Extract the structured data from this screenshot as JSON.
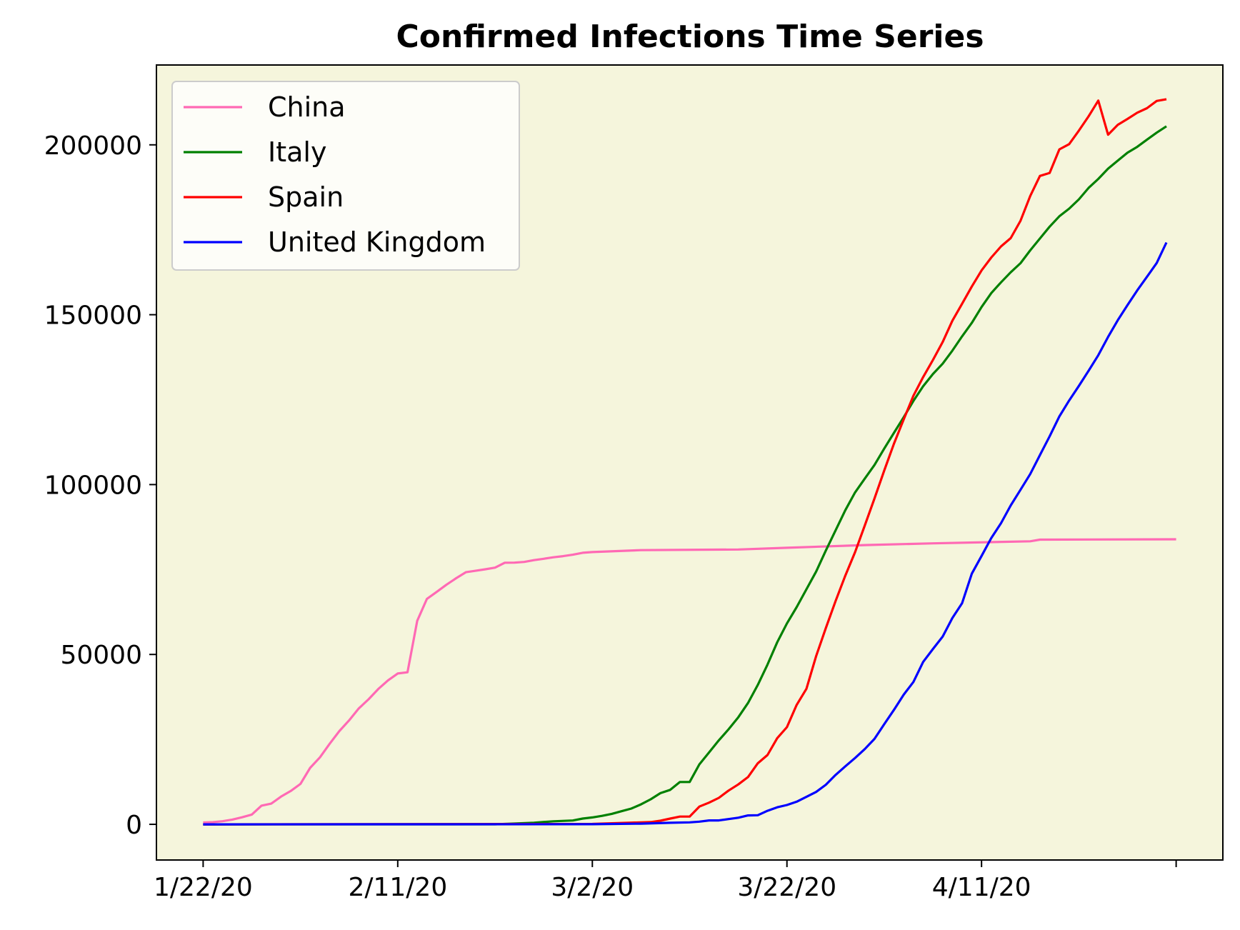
{
  "chart_data": {
    "type": "line",
    "title": "Confirmed Infections Time Series",
    "xlabel": "",
    "ylabel": "",
    "x_axis": {
      "ticks": [
        "1/22/20",
        "2/11/20",
        "3/2/20",
        "3/22/20",
        "4/11/20",
        ""
      ],
      "tick_days": [
        0,
        20,
        40,
        60,
        80,
        100
      ],
      "range_days": [
        -4.8,
        104.8
      ]
    },
    "ylim": [
      -10500,
      223500
    ],
    "y_ticks": [
      0,
      50000,
      100000,
      150000,
      200000
    ],
    "y_tick_labels": [
      "0",
      "50000",
      "100000",
      "150000",
      "200000"
    ],
    "background_color": "#f5f5dc",
    "grid": false,
    "legend": {
      "location": "upper-left"
    },
    "series": [
      {
        "name": "China",
        "color": "#ff69b4",
        "points": [
          [
            0,
            548
          ],
          [
            1,
            643
          ],
          [
            2,
            920
          ],
          [
            3,
            1406
          ],
          [
            4,
            2075
          ],
          [
            5,
            2877
          ],
          [
            6,
            5509
          ],
          [
            7,
            6087
          ],
          [
            8,
            8141
          ],
          [
            9,
            9802
          ],
          [
            10,
            11891
          ],
          [
            11,
            16630
          ],
          [
            12,
            19716
          ],
          [
            13,
            23707
          ],
          [
            14,
            27440
          ],
          [
            15,
            30587
          ],
          [
            16,
            34110
          ],
          [
            17,
            36814
          ],
          [
            18,
            39829
          ],
          [
            19,
            42354
          ],
          [
            20,
            44386
          ],
          [
            21,
            44759
          ],
          [
            22,
            59895
          ],
          [
            23,
            66358
          ],
          [
            24,
            68413
          ],
          [
            25,
            70513
          ],
          [
            26,
            72434
          ],
          [
            27,
            74211
          ],
          [
            28,
            74619
          ],
          [
            29,
            75077
          ],
          [
            30,
            75550
          ],
          [
            31,
            77001
          ],
          [
            32,
            77022
          ],
          [
            33,
            77241
          ],
          [
            34,
            77754
          ],
          [
            35,
            78166
          ],
          [
            36,
            78600
          ],
          [
            37,
            78928
          ],
          [
            38,
            79356
          ],
          [
            39,
            79932
          ],
          [
            40,
            80136
          ],
          [
            45,
            80700
          ],
          [
            55,
            80900
          ],
          [
            60,
            81400
          ],
          [
            68,
            82200
          ],
          [
            75,
            82700
          ],
          [
            85,
            83300
          ],
          [
            86,
            83800
          ],
          [
            100,
            83900
          ]
        ]
      },
      {
        "name": "Italy",
        "color": "#008000",
        "points": [
          [
            0,
            0
          ],
          [
            30,
            3
          ],
          [
            32,
            229
          ],
          [
            34,
            470
          ],
          [
            36,
            888
          ],
          [
            38,
            1128
          ],
          [
            39,
            1694
          ],
          [
            40,
            2036
          ],
          [
            41,
            2502
          ],
          [
            42,
            3089
          ],
          [
            43,
            3858
          ],
          [
            44,
            4636
          ],
          [
            45,
            5883
          ],
          [
            46,
            7375
          ],
          [
            47,
            9172
          ],
          [
            48,
            10149
          ],
          [
            49,
            12462
          ],
          [
            50,
            12462
          ],
          [
            51,
            17660
          ],
          [
            52,
            21157
          ],
          [
            53,
            24747
          ],
          [
            54,
            27980
          ],
          [
            55,
            31506
          ],
          [
            56,
            35713
          ],
          [
            57,
            41035
          ],
          [
            58,
            47021
          ],
          [
            59,
            53578
          ],
          [
            60,
            59138
          ],
          [
            61,
            63927
          ],
          [
            62,
            69176
          ],
          [
            63,
            74386
          ],
          [
            64,
            80589
          ],
          [
            65,
            86498
          ],
          [
            66,
            92472
          ],
          [
            67,
            97689
          ],
          [
            68,
            101739
          ],
          [
            69,
            105792
          ],
          [
            70,
            110574
          ],
          [
            71,
            115242
          ],
          [
            72,
            119827
          ],
          [
            73,
            124632
          ],
          [
            74,
            128948
          ],
          [
            75,
            132547
          ],
          [
            76,
            135586
          ],
          [
            77,
            139422
          ],
          [
            78,
            143626
          ],
          [
            79,
            147577
          ],
          [
            80,
            152271
          ],
          [
            81,
            156363
          ],
          [
            82,
            159516
          ],
          [
            83,
            162488
          ],
          [
            84,
            165155
          ],
          [
            85,
            168941
          ],
          [
            86,
            172434
          ],
          [
            87,
            175925
          ],
          [
            88,
            178972
          ],
          [
            89,
            181228
          ],
          [
            90,
            183957
          ],
          [
            91,
            187327
          ],
          [
            92,
            189973
          ],
          [
            93,
            192994
          ],
          [
            94,
            195351
          ],
          [
            95,
            197675
          ],
          [
            96,
            199414
          ],
          [
            97,
            201505
          ],
          [
            98,
            203591
          ],
          [
            99,
            205463
          ]
        ]
      },
      {
        "name": "Spain",
        "color": "#ff0000",
        "points": [
          [
            0,
            0
          ],
          [
            40,
            120
          ],
          [
            44,
            500
          ],
          [
            46,
            673
          ],
          [
            47,
            1073
          ],
          [
            48,
            1695
          ],
          [
            49,
            2277
          ],
          [
            50,
            2277
          ],
          [
            51,
            5232
          ],
          [
            52,
            6391
          ],
          [
            53,
            7798
          ],
          [
            54,
            9942
          ],
          [
            55,
            11748
          ],
          [
            56,
            13910
          ],
          [
            57,
            17963
          ],
          [
            58,
            20410
          ],
          [
            59,
            25374
          ],
          [
            60,
            28603
          ],
          [
            61,
            35136
          ],
          [
            62,
            39885
          ],
          [
            63,
            49515
          ],
          [
            64,
            57786
          ],
          [
            65,
            65719
          ],
          [
            66,
            73235
          ],
          [
            67,
            80110
          ],
          [
            68,
            87956
          ],
          [
            69,
            95923
          ],
          [
            70,
            104118
          ],
          [
            71,
            112065
          ],
          [
            72,
            119199
          ],
          [
            73,
            126168
          ],
          [
            74,
            131646
          ],
          [
            75,
            136675
          ],
          [
            76,
            141942
          ],
          [
            77,
            148220
          ],
          [
            78,
            153222
          ],
          [
            79,
            158273
          ],
          [
            80,
            163027
          ],
          [
            81,
            166831
          ],
          [
            82,
            170099
          ],
          [
            83,
            172541
          ],
          [
            84,
            177644
          ],
          [
            85,
            184948
          ],
          [
            86,
            190839
          ],
          [
            87,
            191726
          ],
          [
            88,
            198674
          ],
          [
            89,
            200210
          ],
          [
            90,
            204178
          ],
          [
            91,
            208389
          ],
          [
            92,
            213024
          ],
          [
            93,
            202990
          ],
          [
            94,
            205905
          ],
          [
            95,
            207634
          ],
          [
            96,
            209465
          ],
          [
            97,
            210773
          ],
          [
            98,
            212917
          ],
          [
            99,
            213435
          ]
        ]
      },
      {
        "name": "United Kingdom",
        "color": "#0000ff",
        "points": [
          [
            0,
            0
          ],
          [
            40,
            40
          ],
          [
            45,
            200
          ],
          [
            48,
            460
          ],
          [
            50,
            590
          ],
          [
            51,
            798
          ],
          [
            52,
            1140
          ],
          [
            53,
            1140
          ],
          [
            54,
            1543
          ],
          [
            55,
            1950
          ],
          [
            56,
            2626
          ],
          [
            57,
            2689
          ],
          [
            58,
            3983
          ],
          [
            59,
            5018
          ],
          [
            60,
            5683
          ],
          [
            61,
            6650
          ],
          [
            62,
            8077
          ],
          [
            63,
            9529
          ],
          [
            64,
            11658
          ],
          [
            65,
            14543
          ],
          [
            66,
            17089
          ],
          [
            67,
            19522
          ],
          [
            68,
            22141
          ],
          [
            69,
            25150
          ],
          [
            70,
            29474
          ],
          [
            71,
            33718
          ],
          [
            72,
            38168
          ],
          [
            73,
            41903
          ],
          [
            74,
            47806
          ],
          [
            75,
            51608
          ],
          [
            76,
            55242
          ],
          [
            77,
            60733
          ],
          [
            78,
            65077
          ],
          [
            79,
            73758
          ],
          [
            80,
            78991
          ],
          [
            81,
            84279
          ],
          [
            82,
            88621
          ],
          [
            83,
            93873
          ],
          [
            84,
            98476
          ],
          [
            85,
            103093
          ],
          [
            86,
            108692
          ],
          [
            87,
            114217
          ],
          [
            88,
            120067
          ],
          [
            89,
            124743
          ],
          [
            90,
            129044
          ],
          [
            91,
            133495
          ],
          [
            92,
            138078
          ],
          [
            93,
            143464
          ],
          [
            94,
            148377
          ],
          [
            95,
            152840
          ],
          [
            96,
            157149
          ],
          [
            97,
            161145
          ],
          [
            98,
            165221
          ],
          [
            99,
            171253
          ]
        ]
      }
    ]
  }
}
